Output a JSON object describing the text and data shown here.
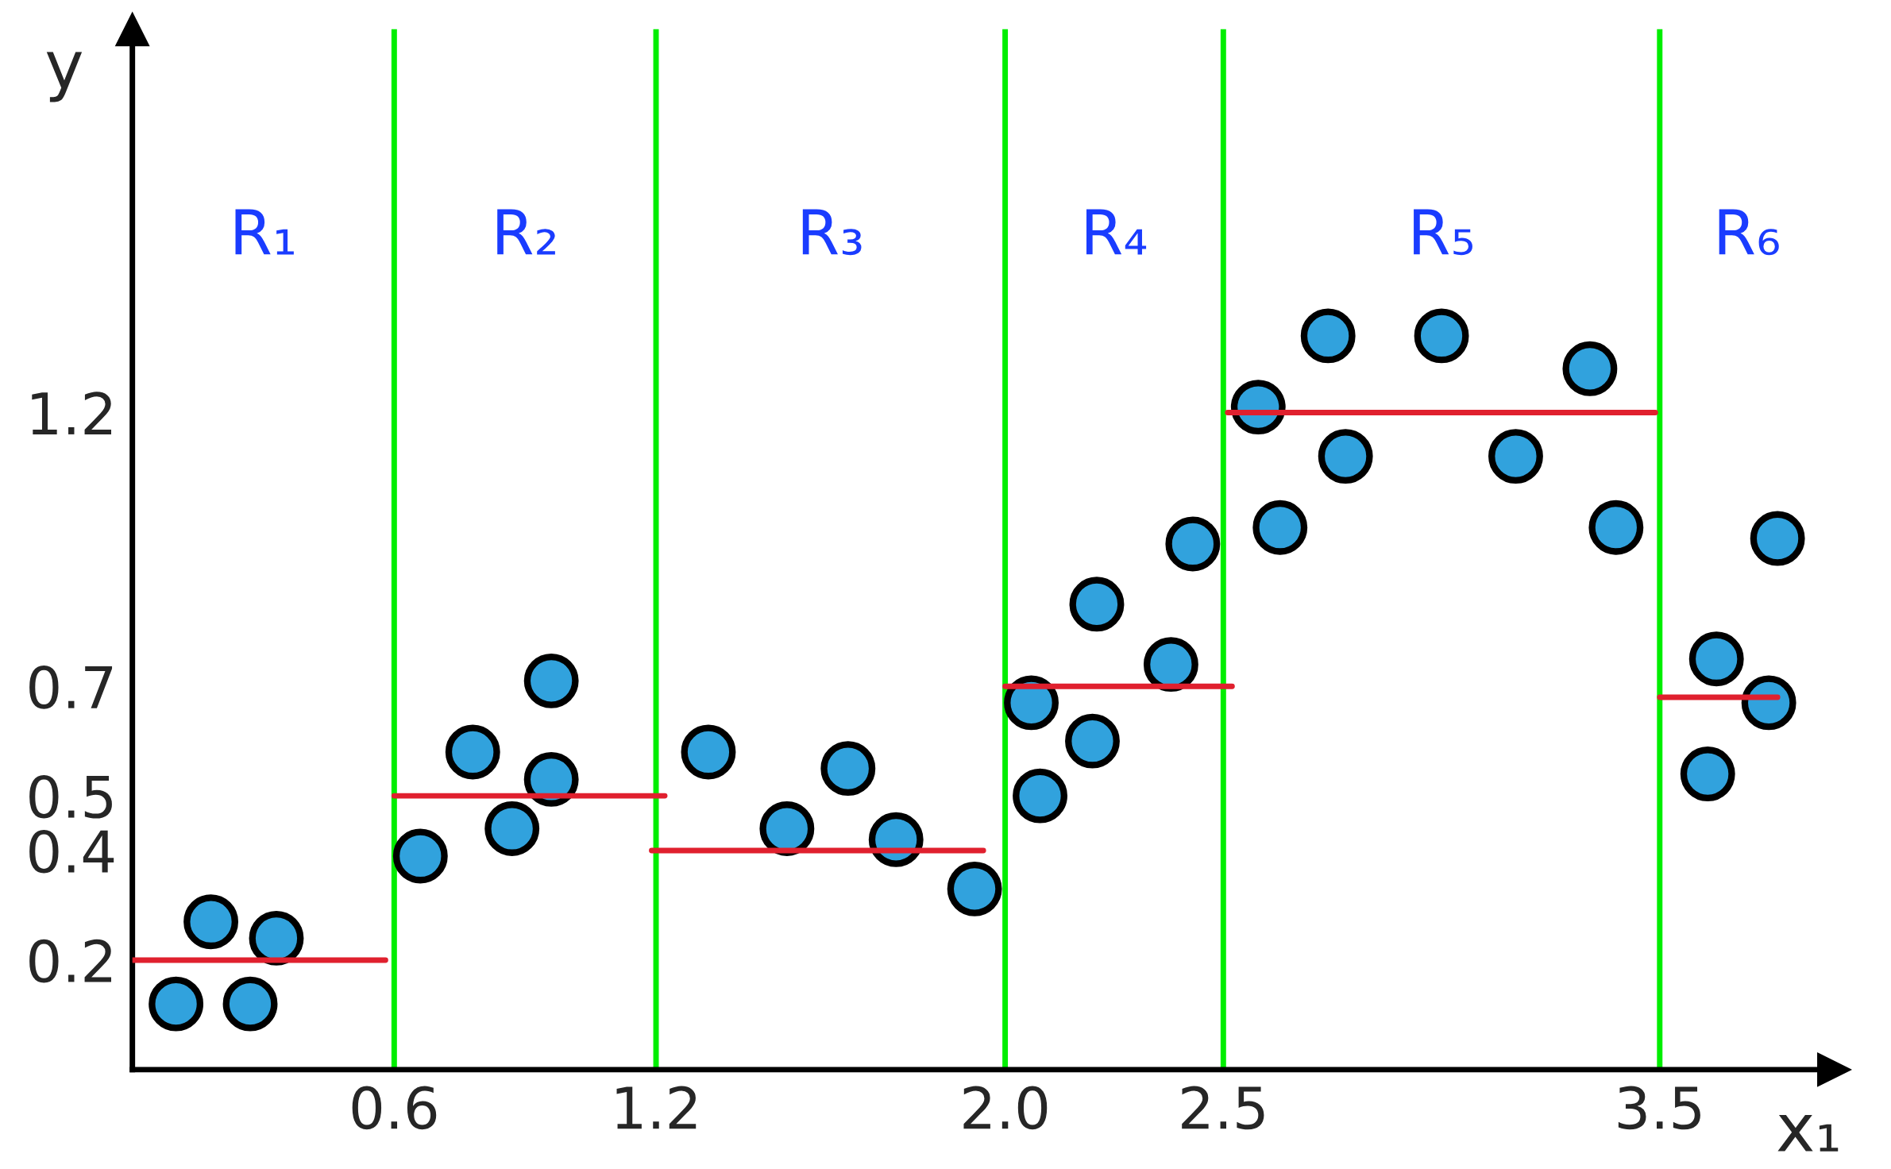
{
  "chart_data": {
    "type": "scatter",
    "xlabel": "x₁",
    "ylabel": "y",
    "xlim": [
      0,
      3.9
    ],
    "ylim": [
      0,
      1.9
    ],
    "xticks": [
      0.6,
      1.2,
      {
        "value": 2.0,
        "label": "2.0"
      },
      2.5,
      3.5
    ],
    "yticks": [
      0.2,
      0.4,
      0.5,
      0.7,
      1.2
    ],
    "grid": false,
    "legend": false,
    "marker": "circle",
    "series": [
      {
        "color": "#31a2dd",
        "x": [
          0.1,
          0.18,
          0.27,
          0.33,
          0.66,
          0.78,
          0.87,
          0.96,
          0.96,
          1.32,
          1.5,
          1.64,
          1.75,
          1.93,
          2.06,
          2.08,
          2.2,
          2.21,
          2.38,
          2.43,
          2.58,
          2.63,
          2.74,
          2.78,
          3.0,
          3.17,
          3.34,
          3.4,
          3.61,
          3.63,
          3.75,
          3.77
        ],
        "values": [
          0.12,
          0.27,
          0.12,
          0.24,
          0.39,
          0.58,
          0.44,
          0.71,
          0.53,
          0.58,
          0.44,
          0.55,
          0.42,
          0.33,
          0.67,
          0.5,
          0.6,
          0.85,
          0.74,
          0.96,
          1.21,
          0.99,
          1.34,
          1.12,
          1.34,
          1.12,
          1.28,
          0.99,
          0.54,
          0.75,
          0.67,
          0.97
        ]
      },
      {
        "type": "line",
        "color": "#e0202e",
        "line_style": "solid",
        "marker": "none",
        "x": [
          0.0,
          0.58,
          null,
          0.6,
          1.22,
          null,
          1.19,
          1.95,
          null,
          2.0,
          2.52,
          null,
          2.51,
          3.49,
          null,
          3.5,
          3.77
        ],
        "values": [
          0.2,
          0.2,
          null,
          0.5,
          0.5,
          null,
          0.4,
          0.4,
          null,
          0.7,
          0.7,
          null,
          1.2,
          1.2,
          null,
          0.68,
          0.68
        ]
      }
    ],
    "ref_lines": [
      {
        "axis": "x",
        "value": 0.6,
        "color": "#00ee00"
      },
      {
        "axis": "x",
        "value": 1.2,
        "color": "#00ee00"
      },
      {
        "axis": "x",
        "value": 2.0,
        "color": "#00ee00"
      },
      {
        "axis": "x",
        "value": 2.5,
        "color": "#00ee00"
      },
      {
        "axis": "x",
        "value": 3.5,
        "color": "#00ee00"
      }
    ],
    "annotations": [
      "R₁",
      "R₂",
      "R₃",
      "R₄",
      "R₅",
      "R₆"
    ]
  }
}
